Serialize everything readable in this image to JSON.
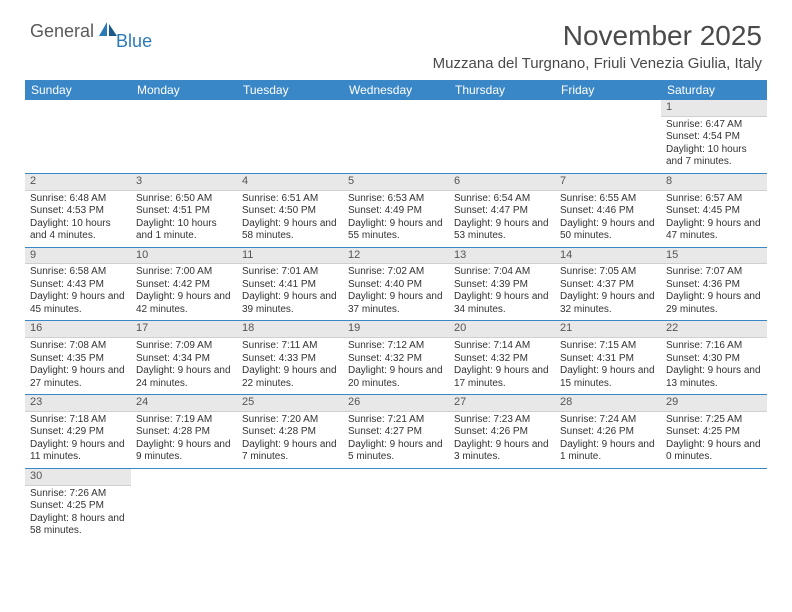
{
  "logo": {
    "main": "General",
    "sub": "Blue"
  },
  "title": "November 2025",
  "location": "Muzzana del Turgnano, Friuli Venezia Giulia, Italy",
  "colors": {
    "header_bg": "#3a87c7",
    "header_text": "#ffffff",
    "daynum_bg": "#e8e8e8",
    "week_border": "#3a87c7",
    "logo_main": "#5a5a5a",
    "logo_sub": "#2b7ab8",
    "body_text": "#333333"
  },
  "day_labels": [
    "Sunday",
    "Monday",
    "Tuesday",
    "Wednesday",
    "Thursday",
    "Friday",
    "Saturday"
  ],
  "weeks": [
    [
      null,
      null,
      null,
      null,
      null,
      null,
      {
        "n": "1",
        "sunrise": "6:47 AM",
        "sunset": "4:54 PM",
        "daylight": "10 hours and 7 minutes."
      }
    ],
    [
      {
        "n": "2",
        "sunrise": "6:48 AM",
        "sunset": "4:53 PM",
        "daylight": "10 hours and 4 minutes."
      },
      {
        "n": "3",
        "sunrise": "6:50 AM",
        "sunset": "4:51 PM",
        "daylight": "10 hours and 1 minute."
      },
      {
        "n": "4",
        "sunrise": "6:51 AM",
        "sunset": "4:50 PM",
        "daylight": "9 hours and 58 minutes."
      },
      {
        "n": "5",
        "sunrise": "6:53 AM",
        "sunset": "4:49 PM",
        "daylight": "9 hours and 55 minutes."
      },
      {
        "n": "6",
        "sunrise": "6:54 AM",
        "sunset": "4:47 PM",
        "daylight": "9 hours and 53 minutes."
      },
      {
        "n": "7",
        "sunrise": "6:55 AM",
        "sunset": "4:46 PM",
        "daylight": "9 hours and 50 minutes."
      },
      {
        "n": "8",
        "sunrise": "6:57 AM",
        "sunset": "4:45 PM",
        "daylight": "9 hours and 47 minutes."
      }
    ],
    [
      {
        "n": "9",
        "sunrise": "6:58 AM",
        "sunset": "4:43 PM",
        "daylight": "9 hours and 45 minutes."
      },
      {
        "n": "10",
        "sunrise": "7:00 AM",
        "sunset": "4:42 PM",
        "daylight": "9 hours and 42 minutes."
      },
      {
        "n": "11",
        "sunrise": "7:01 AM",
        "sunset": "4:41 PM",
        "daylight": "9 hours and 39 minutes."
      },
      {
        "n": "12",
        "sunrise": "7:02 AM",
        "sunset": "4:40 PM",
        "daylight": "9 hours and 37 minutes."
      },
      {
        "n": "13",
        "sunrise": "7:04 AM",
        "sunset": "4:39 PM",
        "daylight": "9 hours and 34 minutes."
      },
      {
        "n": "14",
        "sunrise": "7:05 AM",
        "sunset": "4:37 PM",
        "daylight": "9 hours and 32 minutes."
      },
      {
        "n": "15",
        "sunrise": "7:07 AM",
        "sunset": "4:36 PM",
        "daylight": "9 hours and 29 minutes."
      }
    ],
    [
      {
        "n": "16",
        "sunrise": "7:08 AM",
        "sunset": "4:35 PM",
        "daylight": "9 hours and 27 minutes."
      },
      {
        "n": "17",
        "sunrise": "7:09 AM",
        "sunset": "4:34 PM",
        "daylight": "9 hours and 24 minutes."
      },
      {
        "n": "18",
        "sunrise": "7:11 AM",
        "sunset": "4:33 PM",
        "daylight": "9 hours and 22 minutes."
      },
      {
        "n": "19",
        "sunrise": "7:12 AM",
        "sunset": "4:32 PM",
        "daylight": "9 hours and 20 minutes."
      },
      {
        "n": "20",
        "sunrise": "7:14 AM",
        "sunset": "4:32 PM",
        "daylight": "9 hours and 17 minutes."
      },
      {
        "n": "21",
        "sunrise": "7:15 AM",
        "sunset": "4:31 PM",
        "daylight": "9 hours and 15 minutes."
      },
      {
        "n": "22",
        "sunrise": "7:16 AM",
        "sunset": "4:30 PM",
        "daylight": "9 hours and 13 minutes."
      }
    ],
    [
      {
        "n": "23",
        "sunrise": "7:18 AM",
        "sunset": "4:29 PM",
        "daylight": "9 hours and 11 minutes."
      },
      {
        "n": "24",
        "sunrise": "7:19 AM",
        "sunset": "4:28 PM",
        "daylight": "9 hours and 9 minutes."
      },
      {
        "n": "25",
        "sunrise": "7:20 AM",
        "sunset": "4:28 PM",
        "daylight": "9 hours and 7 minutes."
      },
      {
        "n": "26",
        "sunrise": "7:21 AM",
        "sunset": "4:27 PM",
        "daylight": "9 hours and 5 minutes."
      },
      {
        "n": "27",
        "sunrise": "7:23 AM",
        "sunset": "4:26 PM",
        "daylight": "9 hours and 3 minutes."
      },
      {
        "n": "28",
        "sunrise": "7:24 AM",
        "sunset": "4:26 PM",
        "daylight": "9 hours and 1 minute."
      },
      {
        "n": "29",
        "sunrise": "7:25 AM",
        "sunset": "4:25 PM",
        "daylight": "9 hours and 0 minutes."
      }
    ],
    [
      {
        "n": "30",
        "sunrise": "7:26 AM",
        "sunset": "4:25 PM",
        "daylight": "8 hours and 58 minutes."
      },
      null,
      null,
      null,
      null,
      null,
      null
    ]
  ],
  "labels": {
    "sunrise": "Sunrise:",
    "sunset": "Sunset:",
    "daylight": "Daylight:"
  }
}
